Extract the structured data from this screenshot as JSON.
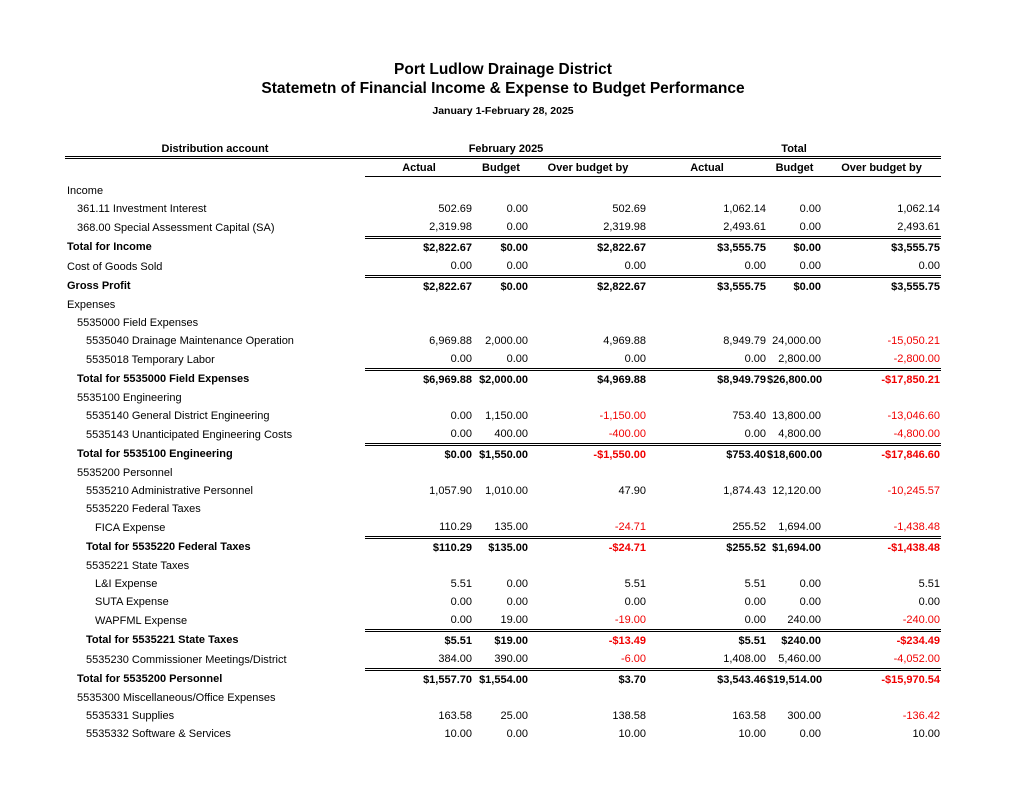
{
  "report": {
    "title": "Port Ludlow Drainage District",
    "subtitle": "Statemetn of Financial Income &amp; Expense to Budget Performance",
    "subtitle_plain": "Statemetn of Financial Income & Expense to Budget Performance",
    "period": "January 1-February 28, 2025"
  },
  "colors": {
    "text": "#000000",
    "negative": "#f00000"
  },
  "table": {
    "account_header": "Distribution account",
    "group_headers": [
      "February 2025",
      "Total"
    ],
    "sub_headers": [
      "Actual",
      "Budget",
      "Over budget by",
      "Actual",
      "Budget",
      "Over budget by"
    ],
    "rows": [
      {
        "label": "Income",
        "level": 0,
        "type": "section",
        "values": null
      },
      {
        "label": "361.11 Investment Interest",
        "level": 1,
        "type": "data",
        "values": [
          "502.69",
          "0.00",
          "502.69",
          "1,062.14",
          "0.00",
          "1,062.14"
        ]
      },
      {
        "label": "368.00 Special Assessment Capital (SA)",
        "level": 1,
        "type": "data",
        "values": [
          "2,319.98",
          "0.00",
          "2,319.98",
          "2,493.61",
          "0.00",
          "2,493.61"
        ]
      },
      {
        "label": "Total for Income",
        "level": 0,
        "type": "total",
        "values": [
          "$2,822.67",
          "$0.00",
          "$2,822.67",
          "$3,555.75",
          "$0.00",
          "$3,555.75"
        ]
      },
      {
        "label": "Cost of Goods Sold",
        "level": 0,
        "type": "data",
        "values": [
          "0.00",
          "0.00",
          "0.00",
          "0.00",
          "0.00",
          "0.00"
        ]
      },
      {
        "label": "Gross Profit",
        "level": 0,
        "type": "total",
        "values": [
          "$2,822.67",
          "$0.00",
          "$2,822.67",
          "$3,555.75",
          "$0.00",
          "$3,555.75"
        ]
      },
      {
        "label": "Expenses",
        "level": 0,
        "type": "section",
        "values": null
      },
      {
        "label": "5535000 Field Expenses",
        "level": 1,
        "type": "section",
        "values": null
      },
      {
        "label": "5535040 Drainage Maintenance Operation",
        "level": 2,
        "type": "data",
        "values": [
          "6,969.88",
          "2,000.00",
          "4,969.88",
          "8,949.79",
          "24,000.00",
          "-15,050.21"
        ]
      },
      {
        "label": "5535018 Temporary Labor",
        "level": 2,
        "type": "data",
        "values": [
          "0.00",
          "0.00",
          "0.00",
          "0.00",
          "2,800.00",
          "-2,800.00"
        ]
      },
      {
        "label": "Total for 5535000 Field Expenses",
        "level": 1,
        "type": "total",
        "values": [
          "$6,969.88",
          "$2,000.00",
          "$4,969.88",
          "$8,949.79",
          "$26,800.00",
          "-$17,850.21"
        ]
      },
      {
        "label": "5535100 Engineering",
        "level": 1,
        "type": "section",
        "values": null
      },
      {
        "label": "5535140 General District Engineering",
        "level": 2,
        "type": "data",
        "values": [
          "0.00",
          "1,150.00",
          "-1,150.00",
          "753.40",
          "13,800.00",
          "-13,046.60"
        ]
      },
      {
        "label": "5535143 Unanticipated Engineering Costs",
        "level": 2,
        "type": "data",
        "values": [
          "0.00",
          "400.00",
          "-400.00",
          "0.00",
          "4,800.00",
          "-4,800.00"
        ]
      },
      {
        "label": "Total for 5535100 Engineering",
        "level": 1,
        "type": "total",
        "values": [
          "$0.00",
          "$1,550.00",
          "-$1,550.00",
          "$753.40",
          "$18,600.00",
          "-$17,846.60"
        ]
      },
      {
        "label": "5535200 Personnel",
        "level": 1,
        "type": "section",
        "values": null
      },
      {
        "label": "5535210 Administrative Personnel",
        "level": 2,
        "type": "data",
        "values": [
          "1,057.90",
          "1,010.00",
          "47.90",
          "1,874.43",
          "12,120.00",
          "-10,245.57"
        ]
      },
      {
        "label": "5535220 Federal Taxes",
        "level": 2,
        "type": "section",
        "values": null
      },
      {
        "label": "FICA Expense",
        "level": 3,
        "type": "data",
        "values": [
          "110.29",
          "135.00",
          "-24.71",
          "255.52",
          "1,694.00",
          "-1,438.48"
        ]
      },
      {
        "label": "Total for 5535220 Federal Taxes",
        "level": 2,
        "type": "total",
        "values": [
          "$110.29",
          "$135.00",
          "-$24.71",
          "$255.52",
          "$1,694.00",
          "-$1,438.48"
        ]
      },
      {
        "label": "5535221 State Taxes",
        "level": 2,
        "type": "section",
        "values": null
      },
      {
        "label": "L&I Expense",
        "level": 3,
        "type": "data",
        "values": [
          "5.51",
          "0.00",
          "5.51",
          "5.51",
          "0.00",
          "5.51"
        ]
      },
      {
        "label": "SUTA Expense",
        "level": 3,
        "type": "data",
        "values": [
          "0.00",
          "0.00",
          "0.00",
          "0.00",
          "0.00",
          "0.00"
        ]
      },
      {
        "label": "WAPFML Expense",
        "level": 3,
        "type": "data",
        "values": [
          "0.00",
          "19.00",
          "-19.00",
          "0.00",
          "240.00",
          "-240.00"
        ]
      },
      {
        "label": "Total for 5535221 State Taxes",
        "level": 2,
        "type": "total",
        "values": [
          "$5.51",
          "$19.00",
          "-$13.49",
          "$5.51",
          "$240.00",
          "-$234.49"
        ]
      },
      {
        "label": "5535230 Commissioner Meetings/District",
        "level": 2,
        "type": "data",
        "values": [
          "384.00",
          "390.00",
          "-6.00",
          "1,408.00",
          "5,460.00",
          "-4,052.00"
        ]
      },
      {
        "label": "Total for 5535200 Personnel",
        "level": 1,
        "type": "total",
        "values": [
          "$1,557.70",
          "$1,554.00",
          "$3.70",
          "$3,543.46",
          "$19,514.00",
          "-$15,970.54"
        ]
      },
      {
        "label": "5535300 Miscellaneous/Office Expenses",
        "level": 1,
        "type": "section",
        "values": null
      },
      {
        "label": "5535331 Supplies",
        "level": 2,
        "type": "data",
        "values": [
          "163.58",
          "25.00",
          "138.58",
          "163.58",
          "300.00",
          "-136.42"
        ]
      },
      {
        "label": "5535332 Software & Services",
        "level": 2,
        "type": "data",
        "values": [
          "10.00",
          "0.00",
          "10.00",
          "10.00",
          "0.00",
          "10.00"
        ]
      }
    ]
  }
}
